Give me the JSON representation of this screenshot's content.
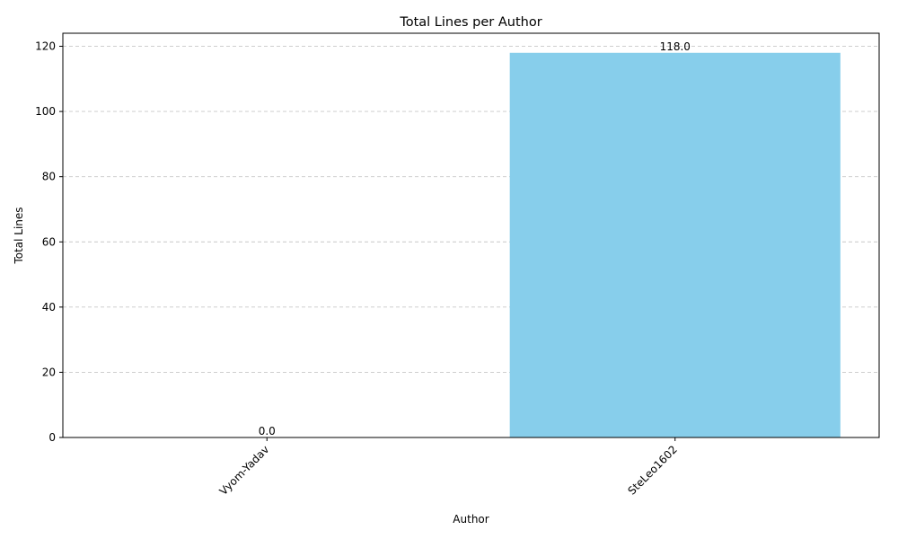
{
  "chart_data": {
    "type": "bar",
    "title": "Total Lines per Author",
    "xlabel": "Author",
    "ylabel": "Total Lines",
    "categories": [
      "Vyom-Yadav",
      "SteLeo1602"
    ],
    "values": [
      0.0,
      118.0
    ],
    "value_labels": [
      "0.0",
      "118.0"
    ],
    "ylim": [
      0,
      124
    ],
    "yticks": [
      0,
      20,
      40,
      60,
      80,
      100,
      120
    ],
    "grid": "y-dashed",
    "bar_color": "#87ceeb",
    "grid_color": "#c8c8c8"
  }
}
